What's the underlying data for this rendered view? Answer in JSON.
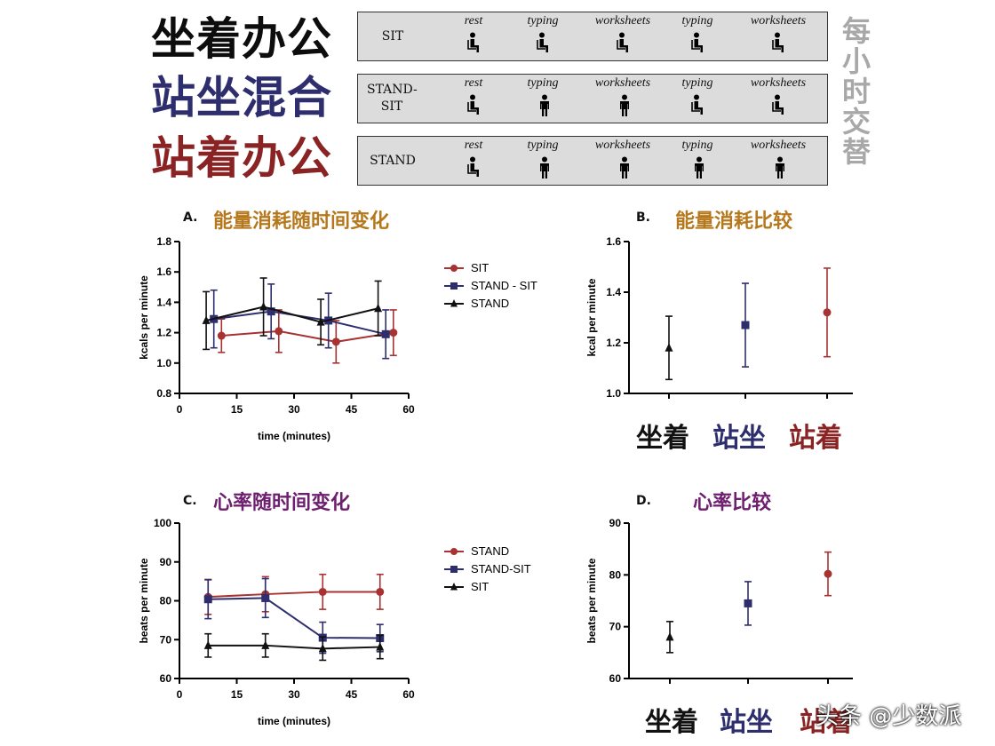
{
  "header": {
    "conditions": [
      {
        "title": "坐着办公",
        "color": "#0d0d0d",
        "label": "SIT",
        "poses": [
          "sit",
          "sit",
          "sit",
          "sit",
          "sit"
        ]
      },
      {
        "title": "站坐混合",
        "color": "#2e2e6e",
        "label": "STAND-SIT",
        "poses": [
          "sit",
          "stand",
          "stand",
          "sit",
          "sit"
        ]
      },
      {
        "title": "站着办公",
        "color": "#8a2424",
        "label": "STAND",
        "poses": [
          "sit",
          "stand",
          "stand",
          "stand",
          "stand"
        ]
      }
    ],
    "activities": [
      "rest",
      "typing",
      "worksheets",
      "typing",
      "worksheets"
    ],
    "vertical_note": "每小时交替",
    "person_sit_icon": "seated-person-icon",
    "person_stand_icon": "standing-person-icon"
  },
  "colors": {
    "sit": "#111111",
    "standsit": "#2e2e6e",
    "stand": "#a83232",
    "title_energy": "#b5781c",
    "title_hr": "#6e1e6e"
  },
  "watermark": "头条 @少数派",
  "chart_data": [
    {
      "id": "A",
      "letter": "A.",
      "type": "line",
      "title": "能量消耗随时间变化",
      "xlabel": "time (minutes)",
      "ylabel": "kcals per minute",
      "xlim": [
        0,
        60
      ],
      "ylim": [
        0.8,
        1.8
      ],
      "xticks": [
        0,
        15,
        30,
        45,
        60
      ],
      "yticks": [
        0.8,
        1.0,
        1.2,
        1.4,
        1.6,
        1.8
      ],
      "legend_position": "right",
      "series": [
        {
          "name": "SIT",
          "marker": "circle",
          "color": "#a83232",
          "x": [
            11,
            26,
            41,
            56
          ],
          "y": [
            1.18,
            1.21,
            1.14,
            1.2
          ],
          "err": [
            0.11,
            0.14,
            0.14,
            0.15
          ]
        },
        {
          "name": "STAND - SIT",
          "marker": "square",
          "color": "#2e2e6e",
          "x": [
            9,
            24,
            39,
            54
          ],
          "y": [
            1.29,
            1.34,
            1.28,
            1.19
          ],
          "err": [
            0.19,
            0.18,
            0.18,
            0.16
          ]
        },
        {
          "name": "STAND",
          "marker": "triangle",
          "color": "#111111",
          "x": [
            7,
            22,
            37,
            52
          ],
          "y": [
            1.28,
            1.37,
            1.27,
            1.36
          ],
          "err": [
            0.19,
            0.19,
            0.15,
            0.18
          ]
        }
      ]
    },
    {
      "id": "B",
      "letter": "B.",
      "type": "scatter",
      "title": "能量消耗比较",
      "xlabel": "",
      "ylabel": "kcal per minute",
      "ylim": [
        1.0,
        1.6
      ],
      "yticks": [
        1.0,
        1.2,
        1.4,
        1.6
      ],
      "categories": [
        "坐着",
        "站坐",
        "站着"
      ],
      "category_colors": [
        "#111111",
        "#2e2e6e",
        "#8a2424"
      ],
      "points": [
        {
          "marker": "triangle",
          "color": "#111111",
          "y": 1.18,
          "err": 0.125
        },
        {
          "marker": "square",
          "color": "#2e2e6e",
          "y": 1.27,
          "err": 0.165
        },
        {
          "marker": "circle",
          "color": "#a83232",
          "y": 1.32,
          "err": 0.175
        }
      ]
    },
    {
      "id": "C",
      "letter": "C.",
      "type": "line",
      "title": "心率随时间变化",
      "xlabel": "time (minutes)",
      "ylabel": "beats per minute",
      "xlim": [
        0,
        60
      ],
      "ylim": [
        60,
        100
      ],
      "xticks": [
        0,
        15,
        30,
        45,
        60
      ],
      "yticks": [
        60,
        70,
        80,
        90,
        100
      ],
      "legend_position": "right",
      "series": [
        {
          "name": "STAND",
          "marker": "circle",
          "color": "#a83232",
          "x": [
            7.5,
            22.5,
            37.5,
            52.5
          ],
          "y": [
            81,
            81.7,
            82.3,
            82.3
          ],
          "err": [
            4.5,
            4.5,
            4.5,
            4.5
          ]
        },
        {
          "name": "STAND-SIT",
          "marker": "square",
          "color": "#2e2e6e",
          "x": [
            7.5,
            22.5,
            37.5,
            52.5
          ],
          "y": [
            80.4,
            80.7,
            70.5,
            70.4
          ],
          "err": [
            5,
            5,
            4,
            3.5
          ]
        },
        {
          "name": "SIT",
          "marker": "triangle",
          "color": "#111111",
          "x": [
            7.5,
            22.5,
            37.5,
            52.5
          ],
          "y": [
            68.5,
            68.5,
            67.7,
            68.1
          ],
          "err": [
            3,
            3,
            3,
            3
          ]
        }
      ]
    },
    {
      "id": "D",
      "letter": "D.",
      "type": "scatter",
      "title": "心率比较",
      "xlabel": "",
      "ylabel": "beats per minute",
      "ylim": [
        60,
        90
      ],
      "yticks": [
        60,
        70,
        80,
        90
      ],
      "categories": [
        "坐着",
        "站坐",
        "站着"
      ],
      "category_colors": [
        "#111111",
        "#2e2e6e",
        "#8a2424"
      ],
      "points": [
        {
          "marker": "triangle",
          "color": "#111111",
          "y": 68,
          "err": 3
        },
        {
          "marker": "square",
          "color": "#2e2e6e",
          "y": 74.5,
          "err": 4.2
        },
        {
          "marker": "circle",
          "color": "#a83232",
          "y": 80.2,
          "err": 4.2
        }
      ]
    }
  ]
}
